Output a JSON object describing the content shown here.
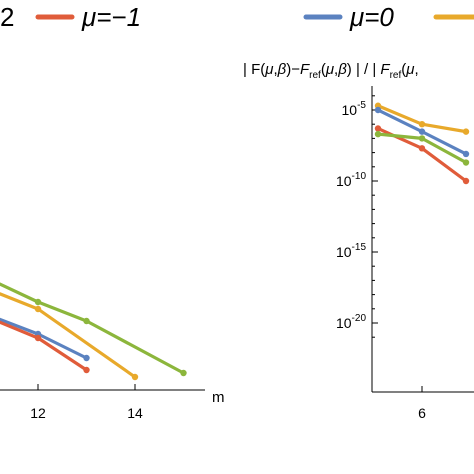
{
  "colors": {
    "mu_neg2": "#8cb63c",
    "mu_neg1": "#e05c3a",
    "mu_0": "#5b82c0",
    "mu_1": "#e8a92b"
  },
  "legend": {
    "left_fragment": "2",
    "mu_neg1": "μ=−1",
    "mu_0": "μ=0"
  },
  "chart_data": [
    {
      "type": "line",
      "panel": "left (partially visible)",
      "xlabel": "m",
      "x_ticks": [
        "12",
        "14"
      ],
      "x_tick_values": [
        12,
        14
      ],
      "xlim": [
        10.6,
        15.6
      ],
      "series": [
        {
          "color_key": "mu_neg2",
          "points": [
            [
              10.6,
              270
            ],
            [
              12,
              302
            ],
            [
              13,
              321
            ],
            [
              15,
              373
            ]
          ]
        },
        {
          "color_key": "mu_1",
          "points": [
            [
              10.6,
              282
            ],
            [
              12,
              309
            ],
            [
              14,
              377
            ]
          ]
        },
        {
          "color_key": "mu_0",
          "points": [
            [
              10.6,
              308
            ],
            [
              12,
              334
            ],
            [
              13,
              358
            ]
          ]
        },
        {
          "color_key": "mu_neg1",
          "points": [
            [
              10.6,
              310
            ],
            [
              12,
              338
            ],
            [
              13,
              370
            ]
          ]
        }
      ]
    },
    {
      "type": "line",
      "panel": "right (partially visible)",
      "ylabel": "| F(μ,β)−F_ref(μ,β) | / | F_ref(μ,",
      "ylabel_parts": {
        "a": "| F(",
        "mu": "μ",
        "comma": ",",
        "beta": "β",
        "b": ")−",
        "F": "F",
        "ref": "ref",
        "c": "(",
        "mu2": "μ",
        "comma2": ",",
        "beta2": "β",
        "d": ") | / | ",
        "F2": "F",
        "ref2": "ref",
        "e": "(",
        "mu3": "μ",
        "f": ","
      },
      "y_scale": "log",
      "y_ticks": [
        {
          "base": "10",
          "exp": "-5",
          "value": 1e-05
        },
        {
          "base": "10",
          "exp": "-10",
          "value": 1e-10
        },
        {
          "base": "10",
          "exp": "-15",
          "value": 1e-15
        },
        {
          "base": "10",
          "exp": "-20",
          "value": 1e-20
        }
      ],
      "x_ticks": [
        "6"
      ],
      "x_tick_values": [
        6
      ],
      "series": [
        {
          "color_key": "mu_1",
          "points": [
            [
              4,
              2e-05
            ],
            [
              6,
              1e-06
            ],
            [
              8,
              3e-07
            ]
          ]
        },
        {
          "color_key": "mu_0",
          "points": [
            [
              4,
              1e-05
            ],
            [
              6,
              3e-07
            ],
            [
              8,
              8e-09
            ]
          ]
        },
        {
          "color_key": "mu_neg1",
          "points": [
            [
              4,
              5e-07
            ],
            [
              6,
              2e-08
            ],
            [
              8,
              1e-10
            ]
          ]
        },
        {
          "color_key": "mu_neg2",
          "points": [
            [
              4,
              2e-07
            ],
            [
              6,
              1e-07
            ],
            [
              8,
              2e-09
            ]
          ]
        }
      ]
    }
  ]
}
